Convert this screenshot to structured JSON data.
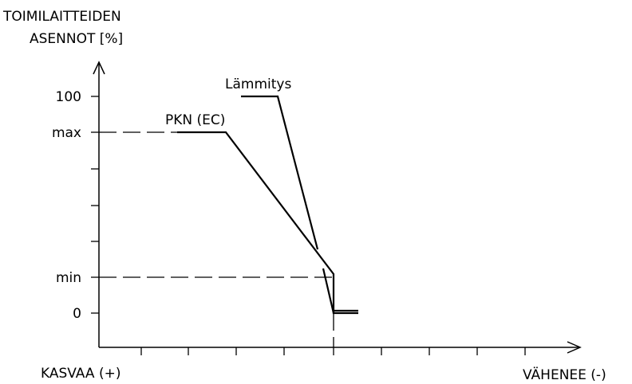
{
  "y_axis": {
    "title_line1": "TOIMILAITTEIDEN",
    "title_line2": "ASENNOT [%]",
    "labels": {
      "p100": "100",
      "max": "max",
      "min": "min",
      "zero": "0"
    }
  },
  "x_axis": {
    "left_label": "KASVAA (+)",
    "right_label": "VÄHENEE (-)"
  },
  "curves": {
    "heating_label": "Lämmitys",
    "pkn_label": "PKN (EC)"
  }
}
